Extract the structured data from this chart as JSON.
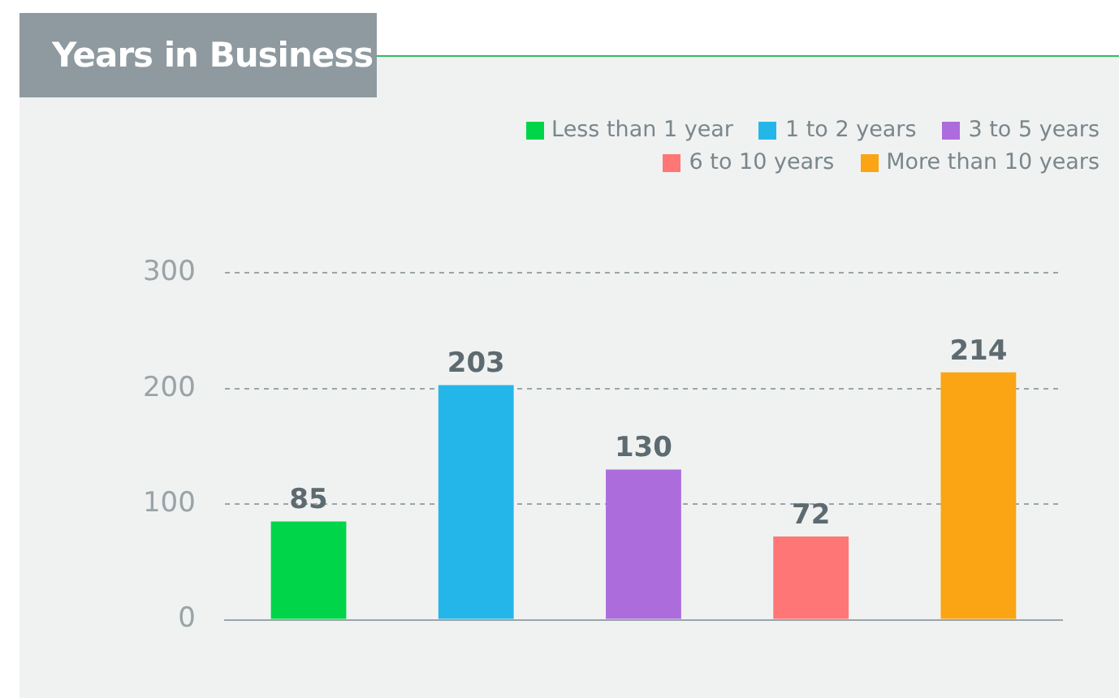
{
  "chart_data": {
    "type": "bar",
    "title": "Years in Business",
    "categories": [
      null,
      null,
      null,
      null,
      null
    ],
    "series": [
      {
        "name": "Less than 1 year",
        "color": "#00d54a",
        "values": [
          85,
          null,
          null,
          null,
          null
        ]
      },
      {
        "name": "1 to 2 years",
        "color": "#25b6e9",
        "values": [
          null,
          203,
          null,
          null,
          null
        ]
      },
      {
        "name": "3 to 5 years",
        "color": "#ac6cdc",
        "values": [
          null,
          null,
          130,
          null,
          null
        ]
      },
      {
        "name": "6 to 10 years",
        "color": "#fe7676",
        "values": [
          null,
          null,
          null,
          72,
          null
        ]
      },
      {
        "name": "More than 10 years",
        "color": "#fba514",
        "values": [
          null,
          null,
          null,
          null,
          214
        ]
      }
    ],
    "ylim": [
      0,
      300
    ],
    "yticks": [
      0,
      100,
      200,
      300
    ],
    "grid": "y",
    "legend": "top right",
    "data_labels": true,
    "tick_labels": "y"
  }
}
